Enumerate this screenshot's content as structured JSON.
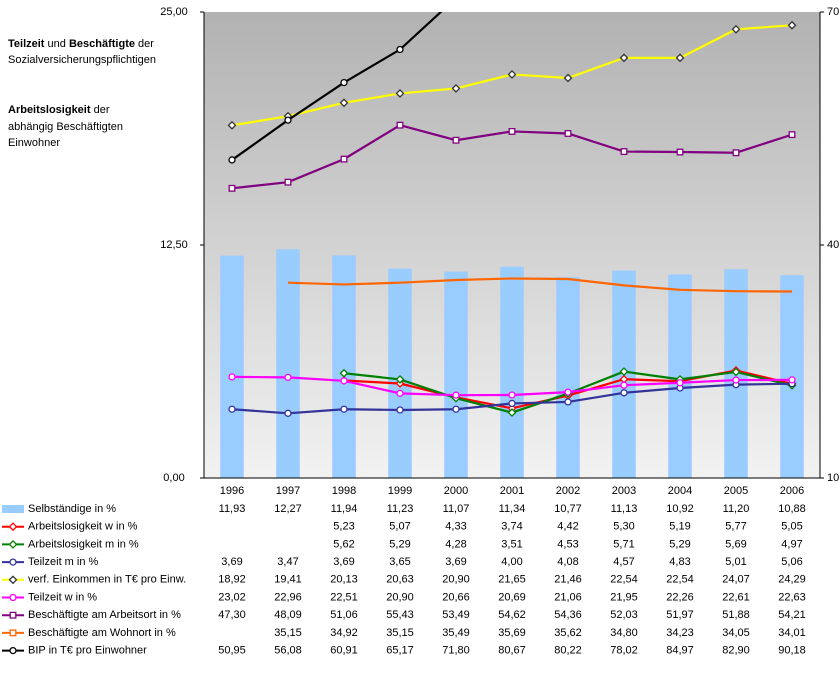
{
  "chart_data": {
    "type": "combo",
    "annotations": [
      "Teilzeit",
      " und ",
      "Beschäftigte",
      " der",
      "Sozialversicherungspflichtigen",
      "Arbeitslosigkeit",
      " der",
      "abhängig Beschäftigten",
      "Einwohner"
    ],
    "categories": [
      "1996",
      "1997",
      "1998",
      "1999",
      "2000",
      "2001",
      "2002",
      "2003",
      "2004",
      "2005",
      "2006"
    ],
    "ylim": [
      0,
      25
    ],
    "yticks": [
      {
        "value": 0,
        "label": "0,00"
      },
      {
        "value": 12.5,
        "label": "12,50"
      },
      {
        "value": 25,
        "label": "25,00"
      }
    ],
    "y2lim": [
      10,
      70
    ],
    "y2ticks": [
      10,
      40,
      70
    ],
    "series": [
      {
        "name": "Selbständige in %",
        "type": "bar",
        "color": "#99ccff",
        "marker": "none",
        "values": [
          11.93,
          12.27,
          11.94,
          11.23,
          11.07,
          11.34,
          10.77,
          11.13,
          10.92,
          11.2,
          10.88
        ],
        "value_labels": [
          "11,93",
          "12,27",
          "11,94",
          "11,23",
          "11,07",
          "11,34",
          "10,77",
          "11,13",
          "10,92",
          "11,20",
          "10,88"
        ]
      },
      {
        "name": "Arbeitslosigkeit w in %",
        "type": "line",
        "color": "#ff0000",
        "marker": "diamond",
        "values": [
          null,
          null,
          5.23,
          5.07,
          4.33,
          3.74,
          4.42,
          5.3,
          5.19,
          5.77,
          5.05
        ],
        "value_labels": [
          null,
          null,
          "5,23",
          "5,07",
          "4,33",
          "3,74",
          "4,42",
          "5,30",
          "5,19",
          "5,77",
          "5,05"
        ]
      },
      {
        "name": "Arbeitslosigkeit m in %",
        "type": "line",
        "color": "#008000",
        "marker": "diamond",
        "values": [
          null,
          null,
          5.62,
          5.29,
          4.28,
          3.51,
          4.53,
          5.71,
          5.29,
          5.69,
          4.97
        ],
        "value_labels": [
          null,
          null,
          "5,62",
          "5,29",
          "4,28",
          "3,51",
          "4,53",
          "5,71",
          "5,29",
          "5,69",
          "4,97"
        ]
      },
      {
        "name": "Teilzeit m in %",
        "type": "line",
        "color": "#333399",
        "marker": "circle",
        "values": [
          3.69,
          3.47,
          3.69,
          3.65,
          3.69,
          4.0,
          4.08,
          4.57,
          4.83,
          5.01,
          5.06
        ],
        "value_labels": [
          "3,69",
          "3,47",
          "3,69",
          "3,65",
          "3,69",
          "4,00",
          "4,08",
          "4,57",
          "4,83",
          "5,01",
          "5,06"
        ]
      },
      {
        "name": "verf. Einkommen in T€ pro Einw.",
        "type": "line",
        "color": "#ffff00",
        "marker": "diamond",
        "values": [
          18.92,
          19.41,
          20.13,
          20.63,
          20.9,
          21.65,
          21.46,
          22.54,
          22.54,
          24.07,
          24.29
        ],
        "value_labels": [
          "18,92",
          "19,41",
          "20,13",
          "20,63",
          "20,90",
          "21,65",
          "21,46",
          "22,54",
          "22,54",
          "24,07",
          "24,29"
        ]
      },
      {
        "name": "Teilzeit w in %",
        "type": "line",
        "color": "#ff00ff",
        "marker": "circle",
        "axis": "y2",
        "values": [
          23.02,
          22.96,
          22.51,
          20.9,
          20.66,
          20.69,
          21.06,
          21.95,
          22.26,
          22.61,
          22.63
        ],
        "value_labels": [
          "23,02",
          "22,96",
          "22,51",
          "20,90",
          "20,66",
          "20,69",
          "21,06",
          "21,95",
          "22,26",
          "22,61",
          "22,63"
        ]
      },
      {
        "name": "Beschäftigte am Arbeitsort in %",
        "type": "line",
        "color": "#800080",
        "marker": "square",
        "axis": "y2",
        "values": [
          47.3,
          48.09,
          51.06,
          55.43,
          53.49,
          54.62,
          54.36,
          52.03,
          51.97,
          51.88,
          54.21
        ],
        "value_labels": [
          "47,30",
          "48,09",
          "51,06",
          "55,43",
          "53,49",
          "54,62",
          "54,36",
          "52,03",
          "51,97",
          "51,88",
          "54,21"
        ]
      },
      {
        "name": "Beschäftigte am Wohnort in %",
        "type": "line",
        "color": "#ff6600",
        "marker": "none",
        "axis": "y2",
        "values": [
          null,
          35.15,
          34.92,
          35.15,
          35.49,
          35.69,
          35.62,
          34.8,
          34.23,
          34.05,
          34.01
        ],
        "value_labels": [
          null,
          "35,15",
          "34,92",
          "35,15",
          "35,49",
          "35,69",
          "35,62",
          "34,80",
          "34,23",
          "34,05",
          "34,01"
        ]
      },
      {
        "name": "BIP in T€ pro Einwohner",
        "type": "line",
        "color": "#000000",
        "marker": "circle",
        "axis": "y2",
        "values": [
          50.95,
          56.08,
          60.91,
          65.17,
          71.8,
          80.67,
          80.22,
          78.02,
          84.97,
          82.9,
          90.18
        ],
        "value_labels": [
          "50,95",
          "56,08",
          "60,91",
          "65,17",
          "71,80",
          "80,67",
          "80,22",
          "78,02",
          "84,97",
          "82,90",
          "90,18"
        ]
      }
    ]
  }
}
